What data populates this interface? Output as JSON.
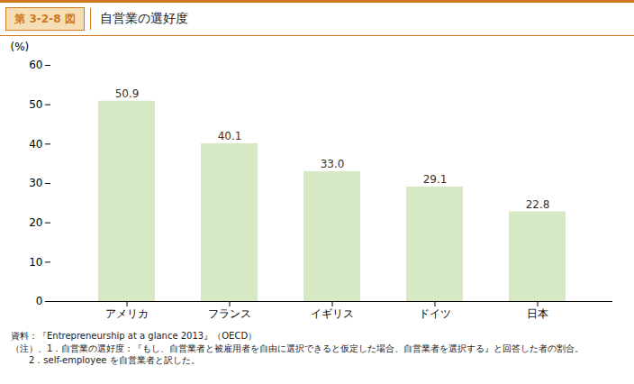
{
  "chart_data": {
    "type": "bar",
    "title": "自営業の選好度",
    "title_label": "第 3-2-8 図",
    "categories": [
      "アメリカ",
      "フランス",
      "イギリス",
      "ドイツ",
      "日本"
    ],
    "values": [
      50.9,
      40.1,
      33.0,
      29.1,
      22.8
    ],
    "value_labels": [
      "50.9",
      "40.1",
      "33.0",
      "29.1",
      "22.8"
    ],
    "data_labels": true,
    "color": "#d6e8c4",
    "title_label_color": "#d07820",
    "y_label": "(%)",
    "ylim": [
      0,
      60
    ],
    "yticks": [
      0,
      10,
      20,
      30,
      40,
      50,
      60
    ],
    "grid": false,
    "annotations": [
      "資料：『Entrepreneurship at a glance 2013』（OECD）",
      "（注）、1．自営業の選好度：『もし、自営業者と被雇用者を自由に選択できると仮定した場合、自営業者を選択する』と回答した者の割合。",
      "　　2．self-employee を自営業者と訳した。"
    ]
  }
}
